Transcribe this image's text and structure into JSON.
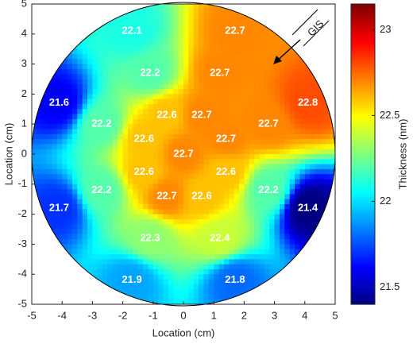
{
  "chart_data": {
    "type": "contour",
    "xlabel": "Location (cm)",
    "ylabel": "Location (cm)",
    "xlim": [
      -5,
      5
    ],
    "ylim": [
      -5,
      5
    ],
    "xticks": [
      -5,
      -4,
      -3,
      -2,
      -1,
      0,
      1,
      2,
      3,
      4,
      5
    ],
    "yticks": [
      -5,
      -4,
      -3,
      -2,
      -1,
      0,
      1,
      2,
      3,
      4,
      5
    ],
    "x": [
      -1.7,
      1.7,
      -1.1,
      1.2,
      -4.1,
      4.1,
      -0.55,
      0.6,
      -2.7,
      2.8,
      -1.3,
      1.4,
      0,
      -1.3,
      1.4,
      -2.7,
      2.8,
      -0.55,
      0.6,
      -4.1,
      4.1,
      -1.1,
      1.2,
      -1.7,
      1.7
    ],
    "y": [
      4.1,
      4.1,
      2.7,
      2.7,
      1.7,
      1.7,
      1.3,
      1.3,
      1.0,
      1.0,
      0.5,
      0.5,
      0,
      -0.6,
      -0.6,
      -1.2,
      -1.2,
      -1.4,
      -1.4,
      -1.8,
      -1.8,
      -2.8,
      -2.8,
      -4.2,
      -4.2
    ],
    "values": [
      22.1,
      22.7,
      22.2,
      22.7,
      21.6,
      22.8,
      22.6,
      22.7,
      22.2,
      22.7,
      22.6,
      22.7,
      22.7,
      22.6,
      22.6,
      22.2,
      22.2,
      22.7,
      22.6,
      21.7,
      21.4,
      22.3,
      22.4,
      21.9,
      21.8
    ],
    "colormap": "jet",
    "colorbar_label": "Thickness (nm)",
    "clim": [
      21.4,
      23.15
    ],
    "cticks": [
      21.5,
      22,
      22.5,
      23
    ],
    "annotation": "GIS"
  }
}
